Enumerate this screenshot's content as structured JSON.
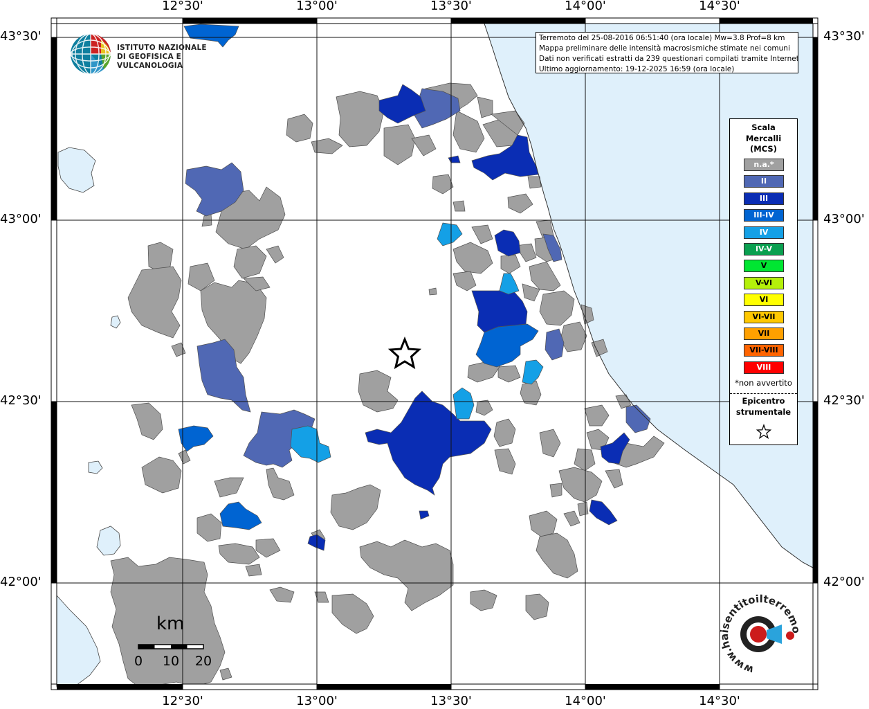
{
  "map": {
    "top_lon_labels": [
      "12°30'",
      "13°00'",
      "13°30'",
      "14°00'",
      "14°30'"
    ],
    "bottom_lon_labels": [
      "12°30'",
      "13°00'",
      "13°30'",
      "14°00'",
      "14°30'"
    ],
    "left_lat_labels": [
      "43°30'",
      "43°00'",
      "42°30'",
      "42°00'"
    ],
    "right_lat_labels": [
      "43°30'",
      "43°00'",
      "42°30'",
      "42°00'"
    ],
    "colors": {
      "sea": "#dff0fb",
      "land": "#ffffff",
      "na": "#a0a0a0",
      "II": "#5068b4",
      "III": "#0a2db4",
      "III-IV": "#0064d2",
      "IV": "#14a0e6"
    }
  },
  "info": {
    "line1": "Terremoto del 25-08-2016 06:51:40 (ora locale) Mw=3.8 Prof=8 km",
    "line2": "Mappa preliminare delle intensità macrosismiche stimate nei comuni",
    "line3": "Dati non verificati estratti da 239 questionari compilati tramite Internet.",
    "line4": "Ultimo aggiornamento: 19-12-2025 16:59 (ora locale)"
  },
  "logo": {
    "line1": "ISTITUTO NAZIONALE",
    "line2": "DI GEOFISICA E VULCANOLOGIA"
  },
  "legend": {
    "title": [
      "Scala",
      "Mercalli",
      "(MCS)"
    ],
    "items": [
      {
        "label": "n.a.*",
        "color": "#a0a0a0",
        "text_color": "#ffffff"
      },
      {
        "label": "II",
        "color": "#5068b4",
        "text_color": "#ffffff"
      },
      {
        "label": "III",
        "color": "#0a2db4",
        "text_color": "#ffffff"
      },
      {
        "label": "III-IV",
        "color": "#0064d2",
        "text_color": "#ffffff"
      },
      {
        "label": "IV",
        "color": "#14a0e6",
        "text_color": "#ffffff"
      },
      {
        "label": "IV-V",
        "color": "#0aa050",
        "text_color": "#ffffff"
      },
      {
        "label": "V",
        "color": "#00e632",
        "text_color": "#000000"
      },
      {
        "label": "V-VI",
        "color": "#b4f00a",
        "text_color": "#000000"
      },
      {
        "label": "VI",
        "color": "#ffff00",
        "text_color": "#000000"
      },
      {
        "label": "VI-VII",
        "color": "#ffc800",
        "text_color": "#000000"
      },
      {
        "label": "VII",
        "color": "#ffa000",
        "text_color": "#000000"
      },
      {
        "label": "VII-VIII",
        "color": "#ff6400",
        "text_color": "#000000"
      },
      {
        "label": "VIII",
        "color": "#ff0000",
        "text_color": "#ffffff"
      }
    ],
    "note": "*non avvertito",
    "epicenter": [
      "Epicentro",
      "strumentale"
    ],
    "epicenter_icon": "star-icon"
  },
  "scale": {
    "unit": "km",
    "labels": [
      "0",
      "10",
      "20"
    ]
  },
  "brand_logo": {
    "text": "www.haisentitoilterremoto.it"
  }
}
